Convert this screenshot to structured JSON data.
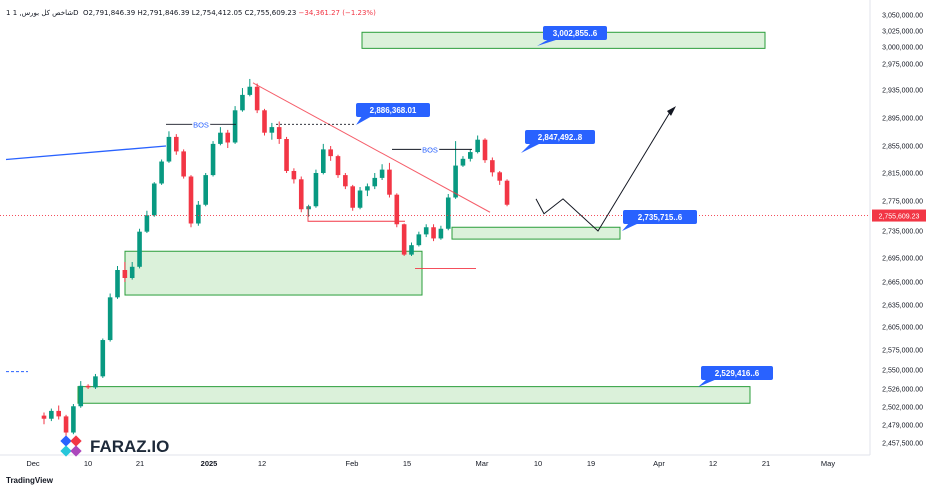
{
  "header": {
    "symbol": "1 شاخص کل بورس, 1D",
    "open": "O2,791,846.39",
    "high": "H2,791,846.39",
    "low": "L2,754,412.05",
    "close": "C2,755,609.23",
    "change": "−34,361.27 (−1.23%)"
  },
  "brand": {
    "name": "FARAZ.IO",
    "platform": "TradingView"
  },
  "colors": {
    "up": "#089981",
    "down": "#f23645",
    "zone_fill": "#d5efd3",
    "zone_stroke": "#2a9d3a",
    "callout": "#2962ff"
  },
  "chart_data": {
    "type": "candlestick",
    "price_ticks": [
      "3,050,000.00",
      "3,025,000.00",
      "3,000,000.00",
      "2,975,000.00",
      "2,935,000.00",
      "2,895,000.00",
      "2,855,000.00",
      "2,815,000.00",
      "2,775,000.00",
      "2,735,000.00",
      "2,695,000.00",
      "2,665,000.00",
      "2,635,000.00",
      "2,605,000.00",
      "2,575,000.00",
      "2,550,000.00",
      "2,526,000.00",
      "2,502,000.00",
      "2,479,000.00",
      "2,457,500.00"
    ],
    "time_ticks": [
      "Dec",
      "10",
      "21",
      "2025",
      "12",
      "Feb",
      "15",
      "Mar",
      "10",
      "19",
      "Apr",
      "12",
      "21",
      "May"
    ],
    "last_price_label": "2,755,609.23",
    "annotations": [
      "BOS",
      "BOS"
    ],
    "callouts": [
      "3,002,855..6",
      "2,886,368.01",
      "2,847,492..8",
      "2,735,715..6",
      "2,529,416..6"
    ],
    "candles": [
      {
        "o": 2491000,
        "h": 2495000,
        "l": 2480000,
        "c": 2487000
      },
      {
        "o": 2487000,
        "h": 2500000,
        "l": 2484000,
        "c": 2497000
      },
      {
        "o": 2497000,
        "h": 2504000,
        "l": 2486000,
        "c": 2490000
      },
      {
        "o": 2490000,
        "h": 2492000,
        "l": 2466000,
        "c": 2470000
      },
      {
        "o": 2470000,
        "h": 2506000,
        "l": 2468000,
        "c": 2503000
      },
      {
        "o": 2503000,
        "h": 2536000,
        "l": 2501000,
        "c": 2530000
      },
      {
        "o": 2530000,
        "h": 2532000,
        "l": 2526000,
        "c": 2528000
      },
      {
        "o": 2528000,
        "h": 2545000,
        "l": 2526000,
        "c": 2542000
      },
      {
        "o": 2542000,
        "h": 2590000,
        "l": 2540000,
        "c": 2588000
      },
      {
        "o": 2588000,
        "h": 2650000,
        "l": 2586000,
        "c": 2645000
      },
      {
        "o": 2645000,
        "h": 2685000,
        "l": 2643000,
        "c": 2680000
      },
      {
        "o": 2680000,
        "h": 2690000,
        "l": 2665000,
        "c": 2670000
      },
      {
        "o": 2670000,
        "h": 2690000,
        "l": 2668000,
        "c": 2684000
      },
      {
        "o": 2684000,
        "h": 2738000,
        "l": 2682000,
        "c": 2734000
      },
      {
        "o": 2734000,
        "h": 2762000,
        "l": 2732000,
        "c": 2756000
      },
      {
        "o": 2756000,
        "h": 2802000,
        "l": 2754000,
        "c": 2800000
      },
      {
        "o": 2800000,
        "h": 2835000,
        "l": 2798000,
        "c": 2832000
      },
      {
        "o": 2832000,
        "h": 2876000,
        "l": 2830000,
        "c": 2868000
      },
      {
        "o": 2868000,
        "h": 2872000,
        "l": 2842000,
        "c": 2847000
      },
      {
        "o": 2847000,
        "h": 2850000,
        "l": 2807000,
        "c": 2810000
      },
      {
        "o": 2810000,
        "h": 2812000,
        "l": 2740000,
        "c": 2745000
      },
      {
        "o": 2745000,
        "h": 2775000,
        "l": 2742000,
        "c": 2770000
      },
      {
        "o": 2770000,
        "h": 2815000,
        "l": 2768000,
        "c": 2812000
      },
      {
        "o": 2812000,
        "h": 2862000,
        "l": 2810000,
        "c": 2858000
      },
      {
        "o": 2858000,
        "h": 2882000,
        "l": 2856000,
        "c": 2874000
      },
      {
        "o": 2874000,
        "h": 2878000,
        "l": 2852000,
        "c": 2860000
      },
      {
        "o": 2860000,
        "h": 2912000,
        "l": 2858000,
        "c": 2906000
      },
      {
        "o": 2906000,
        "h": 2938000,
        "l": 2904000,
        "c": 2928000
      },
      {
        "o": 2928000,
        "h": 2952000,
        "l": 2926000,
        "c": 2940000
      },
      {
        "o": 2940000,
        "h": 2945000,
        "l": 2902000,
        "c": 2906000
      },
      {
        "o": 2906000,
        "h": 2908000,
        "l": 2870000,
        "c": 2874000
      },
      {
        "o": 2874000,
        "h": 2888000,
        "l": 2864000,
        "c": 2882000
      },
      {
        "o": 2882000,
        "h": 2890000,
        "l": 2858000,
        "c": 2865000
      },
      {
        "o": 2865000,
        "h": 2868000,
        "l": 2815000,
        "c": 2818000
      },
      {
        "o": 2818000,
        "h": 2822000,
        "l": 2800000,
        "c": 2806000
      },
      {
        "o": 2806000,
        "h": 2810000,
        "l": 2760000,
        "c": 2764000
      },
      {
        "o": 2764000,
        "h": 2770000,
        "l": 2754000,
        "c": 2768000
      },
      {
        "o": 2768000,
        "h": 2820000,
        "l": 2766000,
        "c": 2815000
      },
      {
        "o": 2815000,
        "h": 2858000,
        "l": 2813000,
        "c": 2850000
      },
      {
        "o": 2850000,
        "h": 2855000,
        "l": 2833000,
        "c": 2840000
      },
      {
        "o": 2840000,
        "h": 2842000,
        "l": 2808000,
        "c": 2812000
      },
      {
        "o": 2812000,
        "h": 2815000,
        "l": 2792000,
        "c": 2796000
      },
      {
        "o": 2796000,
        "h": 2798000,
        "l": 2762000,
        "c": 2766000
      },
      {
        "o": 2766000,
        "h": 2795000,
        "l": 2764000,
        "c": 2790000
      },
      {
        "o": 2790000,
        "h": 2800000,
        "l": 2782000,
        "c": 2796000
      },
      {
        "o": 2796000,
        "h": 2815000,
        "l": 2792000,
        "c": 2808000
      },
      {
        "o": 2808000,
        "h": 2828000,
        "l": 2805000,
        "c": 2820000
      },
      {
        "o": 2820000,
        "h": 2830000,
        "l": 2780000,
        "c": 2784000
      },
      {
        "o": 2784000,
        "h": 2786000,
        "l": 2740000,
        "c": 2744000
      },
      {
        "o": 2744000,
        "h": 2745000,
        "l": 2698000,
        "c": 2700000
      },
      {
        "o": 2700000,
        "h": 2718000,
        "l": 2698000,
        "c": 2714000
      },
      {
        "o": 2714000,
        "h": 2734000,
        "l": 2712000,
        "c": 2730000
      },
      {
        "o": 2730000,
        "h": 2744000,
        "l": 2726000,
        "c": 2740000
      },
      {
        "o": 2740000,
        "h": 2744000,
        "l": 2720000,
        "c": 2724000
      },
      {
        "o": 2724000,
        "h": 2742000,
        "l": 2722000,
        "c": 2738000
      },
      {
        "o": 2738000,
        "h": 2785000,
        "l": 2736000,
        "c": 2780000
      },
      {
        "o": 2780000,
        "h": 2862000,
        "l": 2778000,
        "c": 2826000
      },
      {
        "o": 2826000,
        "h": 2840000,
        "l": 2824000,
        "c": 2836000
      },
      {
        "o": 2836000,
        "h": 2850000,
        "l": 2832000,
        "c": 2846000
      },
      {
        "o": 2846000,
        "h": 2870000,
        "l": 2844000,
        "c": 2864000
      },
      {
        "o": 2864000,
        "h": 2866000,
        "l": 2830000,
        "c": 2834000
      },
      {
        "o": 2834000,
        "h": 2838000,
        "l": 2810000,
        "c": 2816000
      },
      {
        "o": 2816000,
        "h": 2818000,
        "l": 2798000,
        "c": 2804000
      },
      {
        "o": 2804000,
        "h": 2806000,
        "l": 2768000,
        "c": 2770000
      }
    ]
  }
}
